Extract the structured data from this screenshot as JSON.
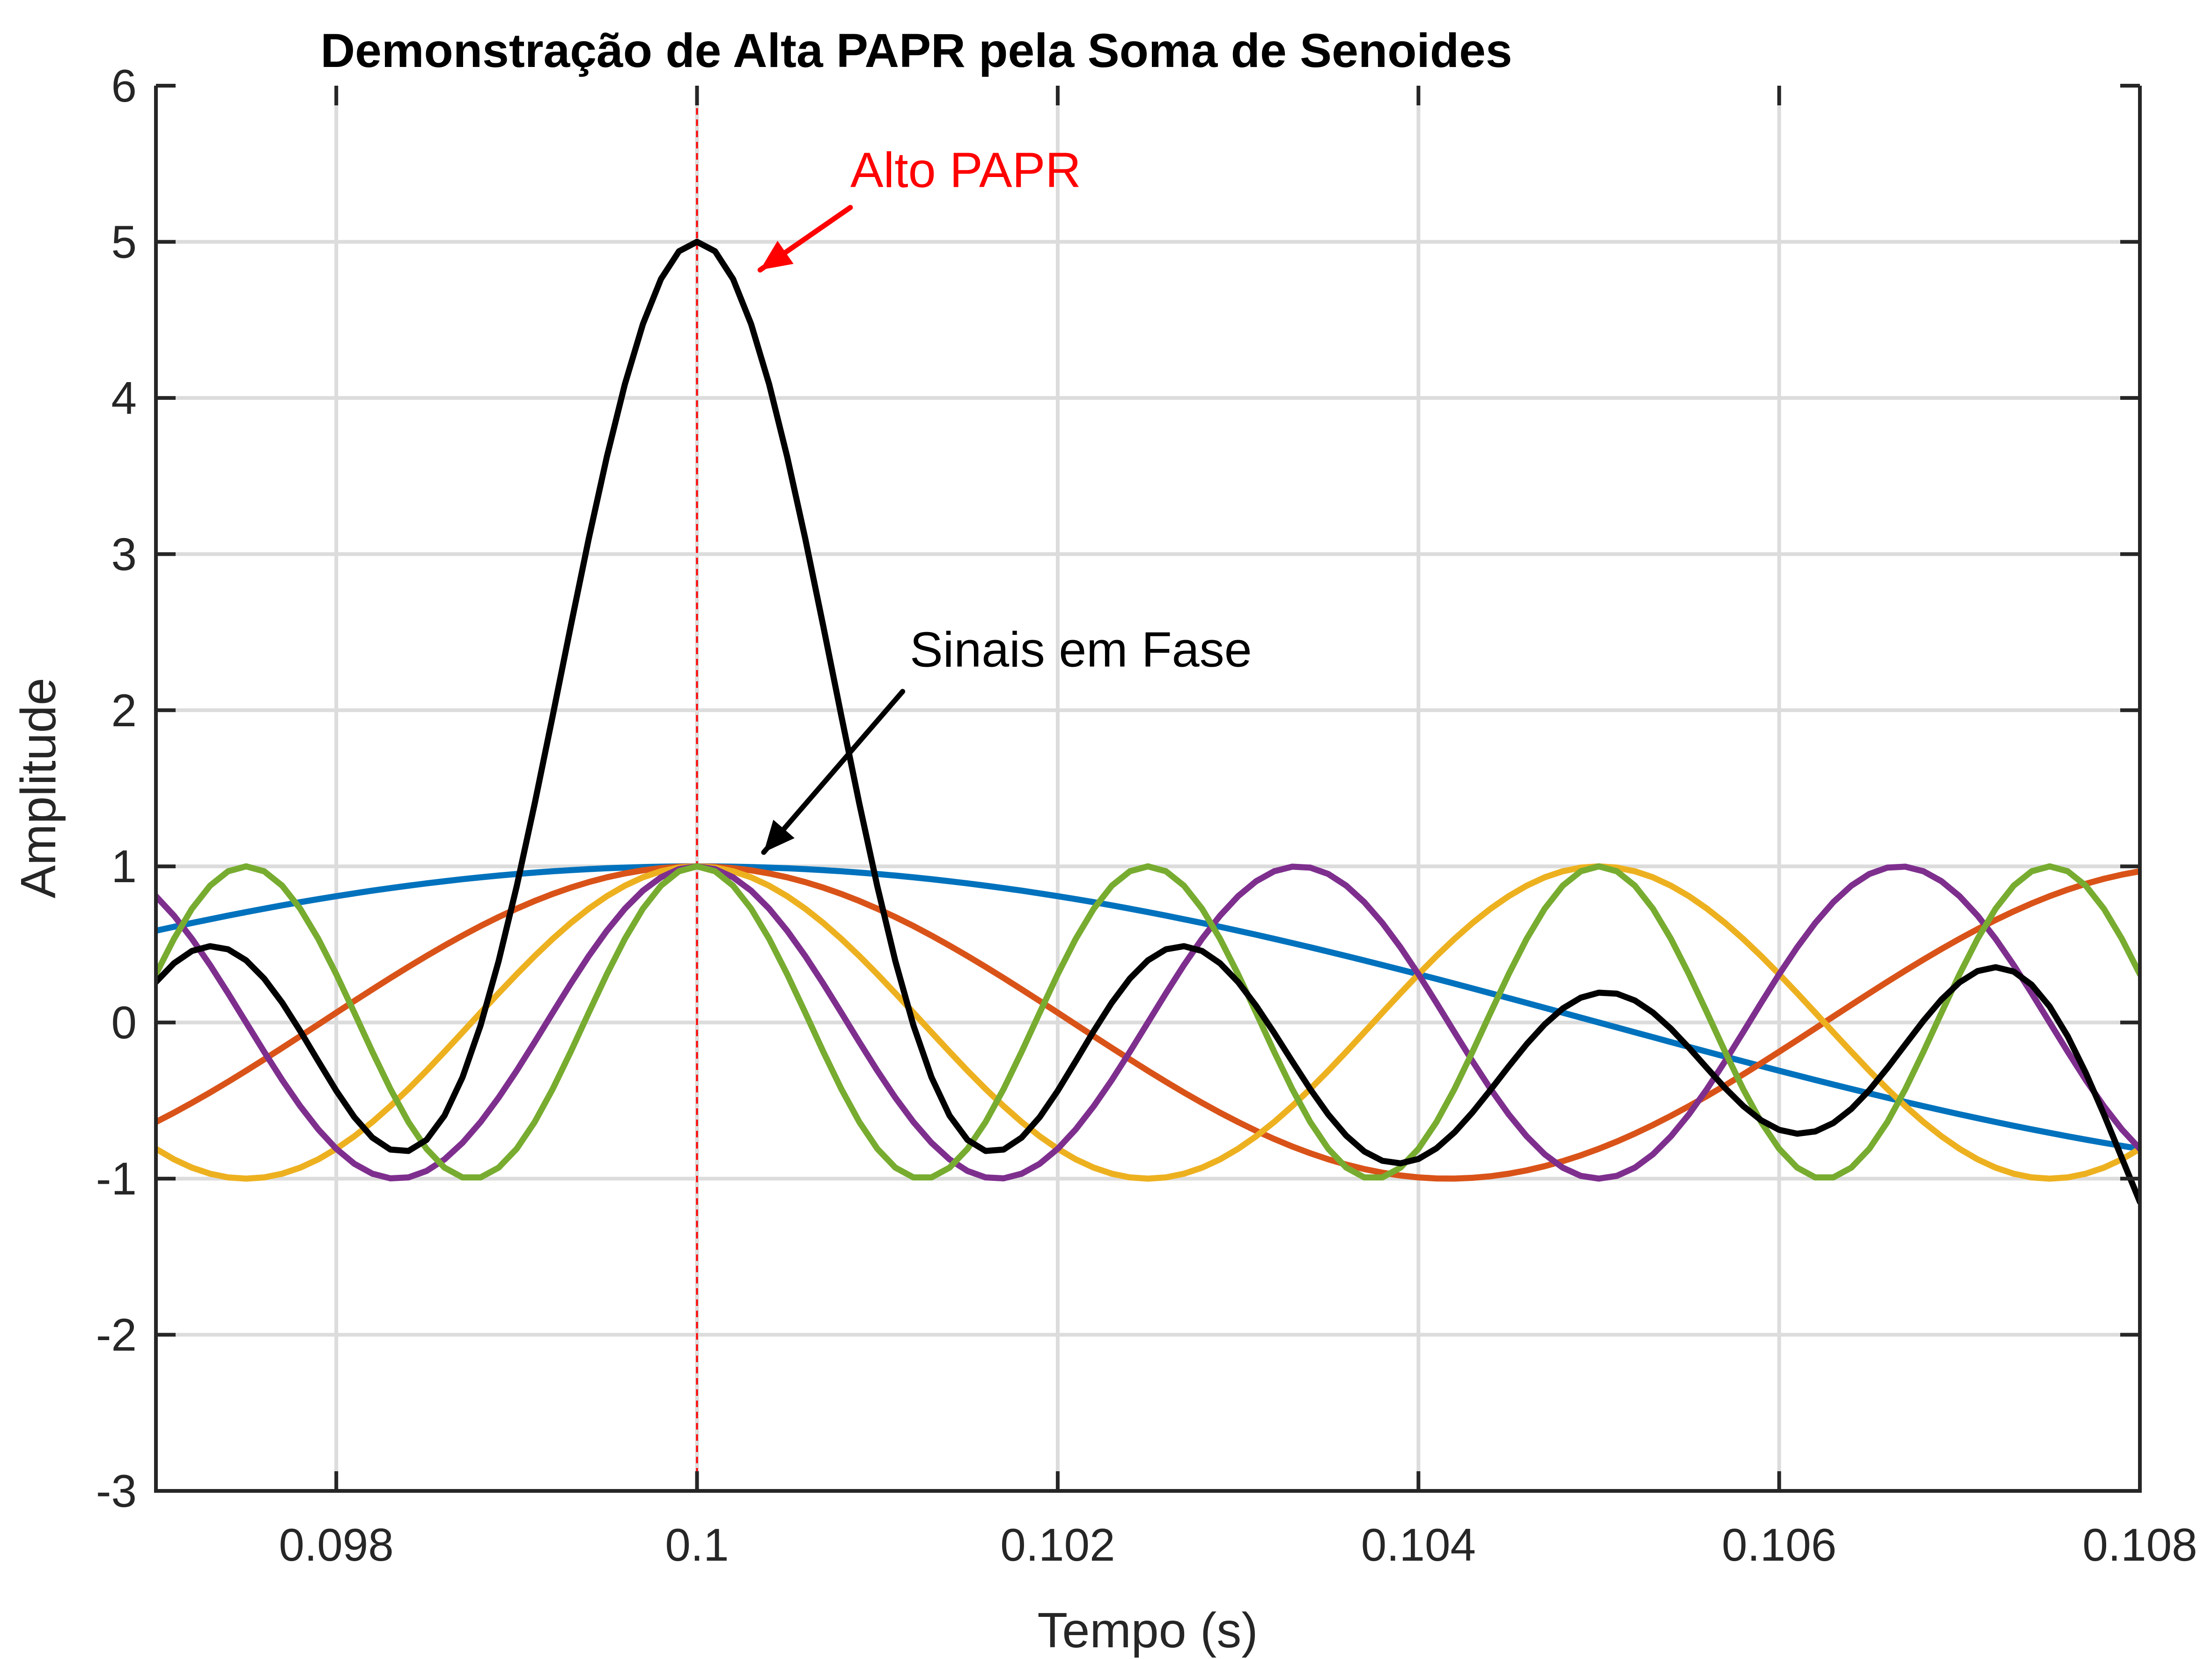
{
  "chart_data": {
    "type": "line",
    "title": "Demonstração de Alta PAPR pela Soma de Senoides",
    "xlabel": "Tempo (s)",
    "ylabel": "Amplitude",
    "xlim": [
      0.097,
      0.108
    ],
    "ylim": [
      -3,
      6
    ],
    "xticks": [
      0.098,
      0.1,
      0.102,
      0.104,
      0.106,
      0.108
    ],
    "xtick_labels": [
      "0.098",
      "0.1",
      "0.102",
      "0.104",
      "0.106",
      "0.108"
    ],
    "yticks": [
      -3,
      -2,
      -1,
      0,
      1,
      2,
      3,
      4,
      5,
      6
    ],
    "ytick_labels": [
      "-3",
      "-2",
      "-1",
      "0",
      "1",
      "2",
      "3",
      "4",
      "5",
      "6"
    ],
    "grid": true,
    "sample_step": 0.0001,
    "series": [
      {
        "frequency_hz": 50,
        "color": "#0072BD"
      },
      {
        "frequency_hz": 120,
        "color": "#D95319"
      },
      {
        "frequency_hz": 200,
        "color": "#EDB120"
      },
      {
        "frequency_hz": 300,
        "color": "#7E2F8E"
      },
      {
        "frequency_hz": 400,
        "color": "#77AC30"
      },
      {
        "frequency_hz": "sum",
        "color": "#000000"
      }
    ],
    "reference_line": {
      "x": 0.1,
      "color": "#FF0000",
      "style": "dashed"
    },
    "annotations": [
      {
        "text": "Alto PAPR",
        "color": "#FF0000",
        "text_x": 0.10085,
        "text_y": 5.35,
        "arrow_from": [
          0.10085,
          5.22
        ],
        "arrow_to": [
          0.10035,
          4.82
        ]
      },
      {
        "text": "Sinais em Fase",
        "color": "#000000",
        "text_x": 0.10118,
        "text_y": 2.28,
        "arrow_from": [
          0.10114,
          2.12
        ],
        "arrow_to": [
          0.10037,
          1.09
        ]
      }
    ]
  }
}
